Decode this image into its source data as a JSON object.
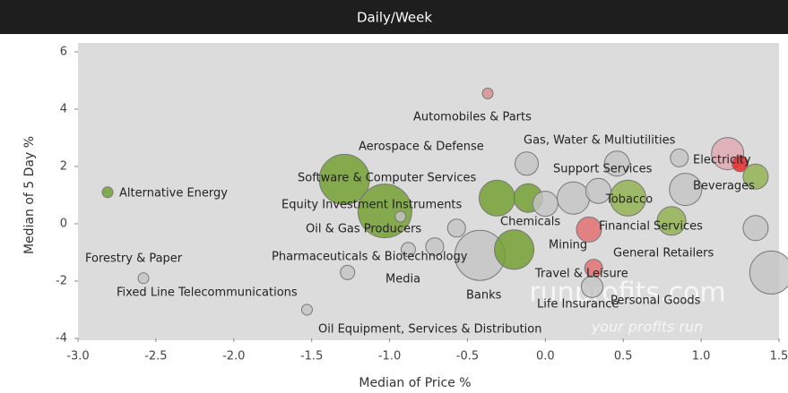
{
  "chart_data": {
    "type": "scatter",
    "title": "Daily/Week",
    "x_label": "Median of Price %",
    "y_label": "Median of 5 Day %",
    "watermark": [
      "runprofits.com",
      "your profits run"
    ],
    "xlim": [
      -3,
      1.5
    ],
    "ylim": [
      -4,
      6
    ],
    "xticks": [
      {
        "value": -3,
        "label": "-3.0"
      },
      {
        "value": -2.5,
        "label": "-2.5"
      },
      {
        "value": -2,
        "label": "-2.0"
      },
      {
        "value": -1.5,
        "label": "-1.5"
      },
      {
        "value": -1,
        "label": "-1.0"
      },
      {
        "value": -0.5,
        "label": "-0.5"
      },
      {
        "value": 0,
        "label": "0.0"
      },
      {
        "value": 0.5,
        "label": "0.5"
      },
      {
        "value": 1,
        "label": "1.0"
      },
      {
        "value": 1.5,
        "label": "1.5"
      }
    ],
    "yticks": [
      -4,
      -2,
      0,
      2,
      4,
      6
    ],
    "labels": [
      "Alternative Energy",
      "Forestry & Paper",
      "Fixed Line Telecommunications",
      "Oil Equipment, Services & Distribution",
      "Automobiles & Parts",
      "Software & Computer Services",
      "Equity Investment Instruments",
      "Oil & Gas Producers",
      "Pharmaceuticals & Biotechnology",
      "Media",
      "Banks",
      "Aerospace & Defense",
      null,
      null,
      null,
      null,
      "Chemicals",
      null,
      "Gas, Water & Multiutilities",
      "Support Services",
      "Tobacco",
      "Financial Services",
      "Mining",
      "Travel & Leisure",
      "Life Insurance",
      "General Retailers",
      null,
      null,
      "Electricity",
      "Beverages",
      null,
      "Personal Goods"
    ],
    "x": [
      -2.81,
      -2.58,
      -1.27,
      -1.53,
      -0.37,
      -1.29,
      -1.03,
      -0.93,
      -0.88,
      -0.71,
      -0.42,
      -0.57,
      -0.2,
      -0.31,
      -0.11,
      -0.12,
      0.0,
      0.18,
      0.46,
      0.34,
      0.53,
      0.81,
      0.28,
      0.31,
      0.3,
      0.9,
      0.86,
      1.17,
      1.25,
      1.35,
      1.35,
      1.45
    ],
    "values": [
      1.1,
      -1.9,
      -1.7,
      -3.0,
      4.55,
      1.55,
      0.45,
      0.25,
      -0.9,
      -0.8,
      -1.1,
      -0.15,
      -0.9,
      0.9,
      0.9,
      2.1,
      0.7,
      0.9,
      2.1,
      1.15,
      0.9,
      0.1,
      -0.2,
      -1.55,
      -2.2,
      1.2,
      2.3,
      2.45,
      2.1,
      1.65,
      -0.15,
      -1.7
    ],
    "sizes": [
      6,
      6,
      8,
      6,
      6,
      28,
      30,
      6,
      8,
      10,
      28,
      10,
      22,
      20,
      16,
      13,
      14,
      18,
      14,
      14,
      20,
      16,
      14,
      10,
      12,
      18,
      10,
      18,
      9,
      14,
      14,
      24
    ],
    "colors": [
      "#6f9e2a",
      "#c4c4c4",
      "#c4c4c4",
      "#c4c4c4",
      "#d98c8c",
      "#6f9e2a",
      "#6f9e2a",
      "#c4c4c4",
      "#c4c4c4",
      "#c4c4c4",
      "#c4c4c4",
      "#c4c4c4",
      "#6f9e2a",
      "#6f9e2a",
      "#6f9e2a",
      "#c4c4c4",
      "#c4c4c4",
      "#c4c4c4",
      "#c4c4c4",
      "#c4c4c4",
      "#8fb04a",
      "#8fb04a",
      "#e36a6a",
      "#e36a6a",
      "#c4c4c4",
      "#c4c4c4",
      "#c4c4c4",
      "#e0a8b0",
      "#e82020",
      "#8fb04a",
      "#c4c4c4",
      "#c4c4c4"
    ]
  }
}
